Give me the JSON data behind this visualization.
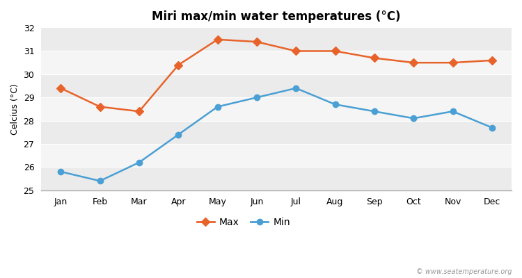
{
  "title": "Miri max/min water temperatures (°C)",
  "ylabel": "Celcius (°C)",
  "months": [
    "Jan",
    "Feb",
    "Mar",
    "Apr",
    "May",
    "Jun",
    "Jul",
    "Aug",
    "Sep",
    "Oct",
    "Nov",
    "Dec"
  ],
  "max_values": [
    29.4,
    28.6,
    28.4,
    30.4,
    31.5,
    31.4,
    31.0,
    31.0,
    30.7,
    30.5,
    30.5,
    30.6
  ],
  "min_values": [
    25.8,
    25.4,
    26.2,
    27.4,
    28.6,
    29.0,
    29.4,
    28.7,
    28.4,
    28.1,
    28.4,
    27.7
  ],
  "max_color": "#e8632a",
  "min_color": "#4a9fd4",
  "bg_color": "#ffffff",
  "band_colors": [
    "#ebebeb",
    "#f5f5f5"
  ],
  "ylim": [
    25,
    32
  ],
  "yticks": [
    25,
    26,
    27,
    28,
    29,
    30,
    31,
    32
  ],
  "legend_labels": [
    "Max",
    "Min"
  ],
  "watermark": "© www.seatemperature.org",
  "title_fontsize": 12,
  "label_fontsize": 9,
  "tick_fontsize": 9
}
